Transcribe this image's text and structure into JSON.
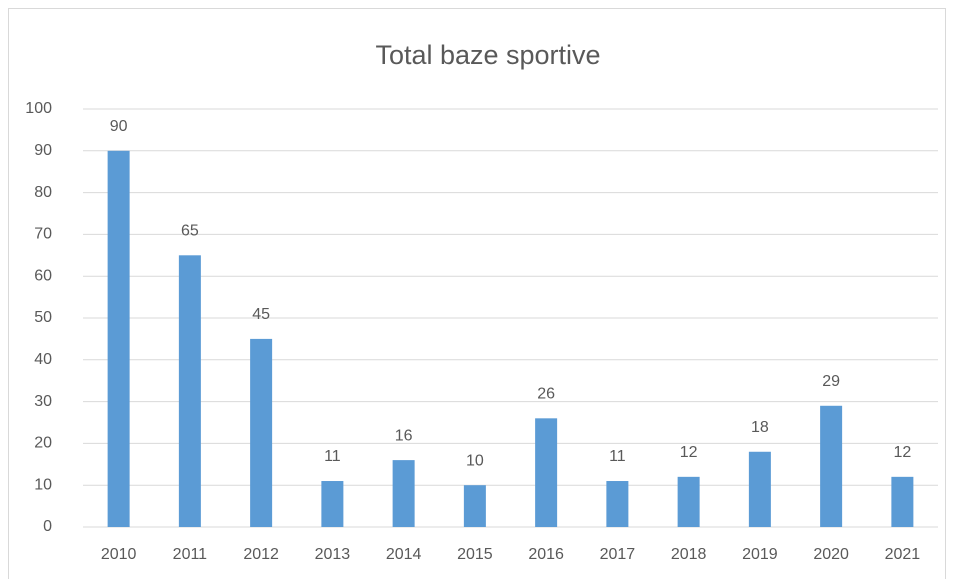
{
  "chart_data": {
    "type": "bar",
    "title": "Total baze sportive",
    "categories": [
      "2010",
      "2011",
      "2012",
      "2013",
      "2014",
      "2015",
      "2016",
      "2017",
      "2018",
      "2019",
      "2020",
      "2021"
    ],
    "values": [
      90,
      65,
      45,
      11,
      16,
      10,
      26,
      11,
      12,
      18,
      29,
      12
    ],
    "color": "#5b9bd5",
    "ylim": [
      0,
      100
    ],
    "yticks": [
      0,
      10,
      20,
      30,
      40,
      50,
      60,
      70,
      80,
      90,
      100
    ],
    "grid": true,
    "data_labels": true
  }
}
